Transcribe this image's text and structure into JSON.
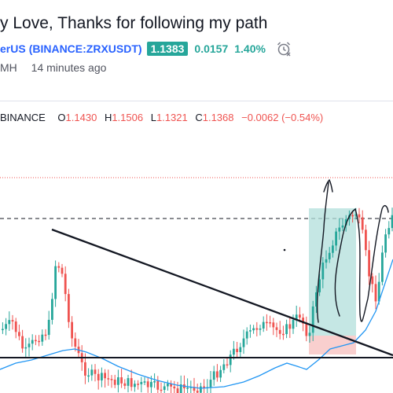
{
  "header": {
    "title": "y Love, Thanks for following my path",
    "symbol_fragment": "erUS",
    "symbol_full": "(BINANCE:ZRXUSDT)",
    "price": "1.1383",
    "change": "0.0157",
    "change_pct": "1.40%",
    "author_fragment": "MH",
    "time_ago": "14 minutes ago"
  },
  "ohlc": {
    "exchange": "BINANCE",
    "open_label": "O",
    "open": "1.1430",
    "high_label": "H",
    "high": "1.1506",
    "low_label": "L",
    "low": "1.1321",
    "close_label": "C",
    "close": "1.1368",
    "change": "−0.0062 (−0.54%)"
  },
  "colors": {
    "up": "#26a69a",
    "down": "#ef5350",
    "link": "#2962ff",
    "ma_line": "#2196f3",
    "zone_green": "#b2dfdb",
    "zone_red": "#f8c7c5"
  }
}
